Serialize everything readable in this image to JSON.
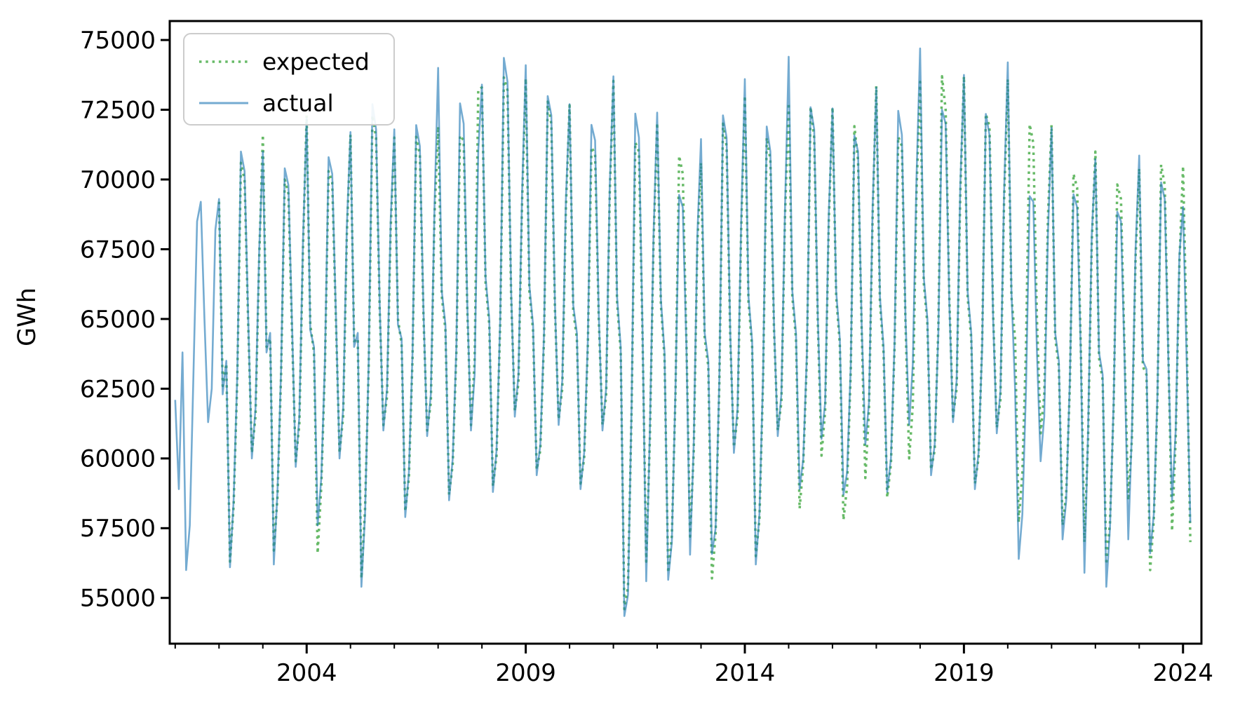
{
  "figure": {
    "background": "#ffffff"
  },
  "axes": {
    "ylabel": "GWh",
    "spine_color": "#000000",
    "tick_color": "#000000"
  },
  "legend": {
    "position": "upper left",
    "items": [
      {
        "label": "expected",
        "style": "dotted"
      },
      {
        "label": "actual",
        "style": "solid"
      }
    ]
  },
  "chart_data": {
    "type": "line",
    "title": "",
    "xlabel": "",
    "ylabel": "GWh",
    "grid": false,
    "legend_position": "upper left",
    "xlim": [
      2000.875,
      2024.42
    ],
    "ylim": [
      53360,
      75680
    ],
    "xticks_major": [
      2004,
      2009,
      2014,
      2019,
      2024
    ],
    "xticks_minor": [
      2001,
      2002,
      2003,
      2005,
      2006,
      2007,
      2008,
      2010,
      2011,
      2012,
      2013,
      2015,
      2016,
      2017,
      2018,
      2020,
      2021,
      2022,
      2023
    ],
    "yticks": [
      55000,
      57500,
      60000,
      62500,
      65000,
      67500,
      70000,
      72500,
      75000
    ],
    "x_unit": "decimal-year, monthly points",
    "series": [
      {
        "name": "expected",
        "style": "dotted",
        "color_rgba": "rgba(44,160,44,0.72)",
        "base_color": "#2ca02c",
        "line_width": 3.5,
        "start_year": 2002,
        "start_month": 1,
        "end": "2024-03",
        "monthly_values": [
          69200,
          62600,
          63400,
          56300,
          58300,
          62800,
          70600,
          70000,
          64800,
          60200,
          61500,
          67200,
          71600,
          64000,
          64300,
          56700,
          58600,
          63000,
          70000,
          69500,
          64500,
          59900,
          61200,
          67500,
          72300,
          64800,
          63800,
          56600,
          59000,
          63300,
          70300,
          69900,
          65000,
          60200,
          61500,
          68000,
          71600,
          64200,
          64300,
          55700,
          58200,
          63300,
          72300,
          71500,
          65300,
          61200,
          62200,
          68200,
          71500,
          65000,
          64100,
          58100,
          59300,
          63600,
          71530,
          70900,
          65100,
          61000,
          62000,
          68700,
          71900,
          65800,
          64600,
          58700,
          59800,
          63800,
          71580,
          71400,
          65300,
          61200,
          63500,
          73230,
          73300,
          66300,
          64800,
          59000,
          60100,
          64800,
          73660,
          73200,
          65800,
          61700,
          62700,
          69200,
          73620,
          66000,
          64600,
          59600,
          60300,
          64300,
          72790,
          72000,
          65300,
          61400,
          62500,
          69000,
          72660,
          65300,
          64300,
          59100,
          60000,
          64000,
          71160,
          70900,
          65000,
          61200,
          62200,
          69500,
          73530,
          65600,
          63800,
          54600,
          55400,
          61800,
          71330,
          71000,
          64300,
          56300,
          60700,
          67700,
          72030,
          65500,
          63600,
          55900,
          57200,
          62300,
          70850,
          70200,
          64200,
          57200,
          60200,
          67700,
          70600,
          64300,
          63300,
          55700,
          57300,
          62600,
          72000,
          71200,
          64300,
          60400,
          61500,
          68200,
          73000,
          65600,
          64000,
          56500,
          57800,
          62800,
          71500,
          70700,
          64600,
          61000,
          62000,
          68700,
          72740,
          65800,
          64300,
          58200,
          59800,
          63600,
          72600,
          71500,
          64800,
          60100,
          61700,
          68500,
          72590,
          65800,
          64100,
          57800,
          59000,
          63100,
          71910,
          70700,
          64600,
          59300,
          61700,
          68700,
          73350,
          65600,
          63800,
          58600,
          59800,
          64000,
          71530,
          71200,
          64800,
          60000,
          61900,
          69500,
          73500,
          66300,
          64800,
          59600,
          60300,
          64700,
          73700,
          72500,
          65700,
          61500,
          62500,
          69500,
          73700,
          65800,
          64300,
          59100,
          60000,
          64200,
          72350,
          71900,
          65200,
          61100,
          62100,
          69200,
          73600,
          65800,
          64300,
          57700,
          59500,
          64000,
          71980,
          71300,
          65000,
          60900,
          62300,
          68600,
          71960,
          64300,
          63300,
          57600,
          58700,
          62600,
          70200,
          69700,
          64000,
          57000,
          60700,
          67700,
          71000,
          63600,
          62800,
          56200,
          57700,
          61800,
          69820,
          69300,
          63700,
          58500,
          60700,
          67200,
          70400,
          63300,
          63000,
          56000,
          57800,
          62100,
          70530,
          69800,
          63700,
          57400,
          60700,
          67000,
          70480,
          64200,
          57000
        ]
      },
      {
        "name": "actual",
        "style": "solid",
        "color_rgba": "rgba(31,119,180,0.62)",
        "base_color": "#1f77b4",
        "line_width": 2.6,
        "start_year": 2001,
        "start_month": 1,
        "end": "2024-03",
        "monthly_values": [
          62100,
          58900,
          63800,
          56000,
          57600,
          63000,
          68500,
          69200,
          65000,
          61300,
          62500,
          68200,
          69300,
          62300,
          63500,
          56100,
          58500,
          63000,
          71000,
          70300,
          65000,
          60000,
          61800,
          67500,
          71000,
          63800,
          64500,
          56200,
          58800,
          63200,
          70400,
          69800,
          64800,
          59700,
          61500,
          67800,
          72200,
          64600,
          64000,
          57600,
          59300,
          63500,
          70800,
          70200,
          65200,
          60000,
          61800,
          68300,
          71700,
          64000,
          64500,
          55400,
          58000,
          63500,
          72700,
          71800,
          65500,
          61000,
          62500,
          68500,
          71800,
          64800,
          64300,
          57900,
          59500,
          63800,
          71950,
          71200,
          65300,
          60800,
          62300,
          69000,
          74000,
          66000,
          64800,
          58500,
          60000,
          64000,
          72730,
          72000,
          65500,
          61000,
          63000,
          71030,
          73400,
          66500,
          65000,
          58800,
          60300,
          65000,
          74360,
          73500,
          66000,
          61500,
          63000,
          69500,
          74100,
          66200,
          64800,
          59400,
          60500,
          64500,
          72990,
          72300,
          65500,
          61200,
          62800,
          69300,
          72700,
          65500,
          64500,
          58900,
          60200,
          64200,
          71960,
          71400,
          65200,
          61000,
          62500,
          69800,
          73700,
          65800,
          64000,
          54350,
          55100,
          62000,
          72360,
          71500,
          64500,
          55600,
          61000,
          68000,
          72400,
          65700,
          63800,
          55650,
          57000,
          62500,
          69450,
          69000,
          64000,
          56550,
          60500,
          68000,
          71450,
          64500,
          63500,
          56580,
          57500,
          62800,
          72300,
          71500,
          64500,
          60200,
          61800,
          68500,
          73600,
          65800,
          64200,
          56200,
          58000,
          63000,
          71900,
          71000,
          64800,
          60800,
          62300,
          69000,
          74400,
          66000,
          64500,
          58900,
          60000,
          63800,
          72590,
          71800,
          65000,
          60700,
          62000,
          68800,
          72550,
          66000,
          64300,
          58700,
          59500,
          63300,
          71580,
          71000,
          64800,
          60500,
          62000,
          69000,
          73300,
          65800,
          64000,
          58800,
          60000,
          64200,
          72460,
          71600,
          65000,
          61200,
          63400,
          70000,
          74700,
          66500,
          65000,
          59400,
          60500,
          64500,
          72500,
          72000,
          65500,
          61300,
          62800,
          69800,
          73750,
          66000,
          64500,
          58900,
          60200,
          64000,
          72350,
          71600,
          65000,
          60900,
          62400,
          69500,
          74200,
          66000,
          62500,
          56400,
          58000,
          62500,
          69400,
          69200,
          63800,
          59900,
          61500,
          68000,
          71860,
          64500,
          63500,
          57100,
          58500,
          62800,
          69470,
          69000,
          63800,
          55900,
          61000,
          68000,
          70730,
          63800,
          63000,
          55400,
          57500,
          62000,
          68840,
          68500,
          63500,
          57100,
          61000,
          67500,
          70860,
          63500,
          63200,
          56600,
          58000,
          62300,
          69900,
          69300,
          63500,
          58500,
          61000,
          67300,
          69020,
          63500,
          57700
        ]
      }
    ]
  }
}
